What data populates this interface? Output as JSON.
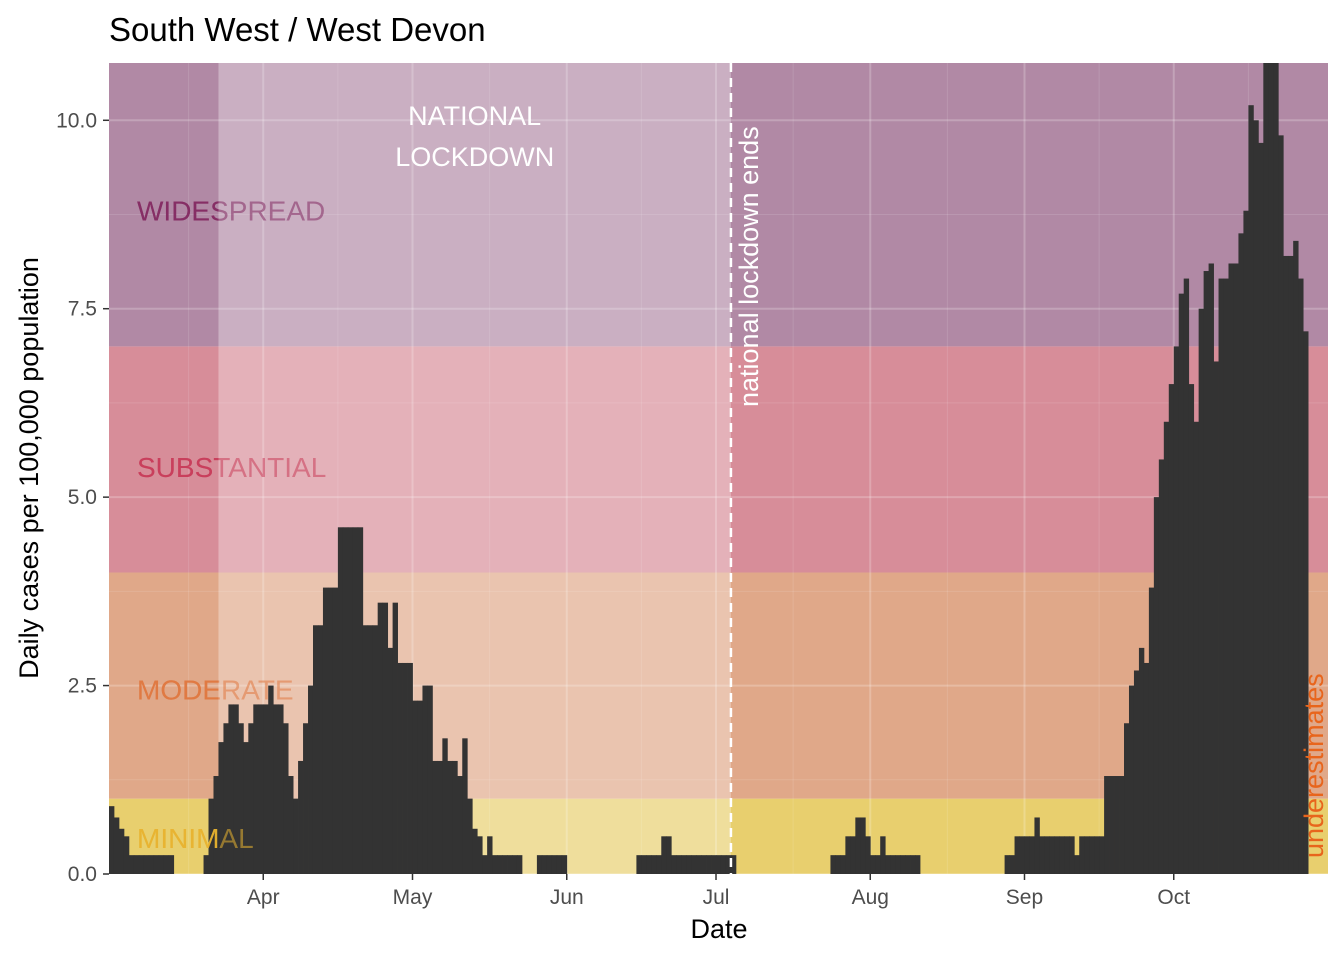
{
  "chart_data": {
    "type": "bar",
    "title": "South West / West Devon",
    "xlabel": "Date",
    "ylabel": "Daily cases per 100,000 population",
    "ylim": [
      0,
      10.76
    ],
    "x_range": [
      "2020-03-01",
      "2020-10-31"
    ],
    "y_ticks": [
      "0.0",
      "2.5",
      "5.0",
      "7.5",
      "10.0"
    ],
    "y_tick_values": [
      0,
      2.5,
      5,
      7.5,
      10
    ],
    "x_ticks": [
      {
        "label": "Apr",
        "date": "2020-04-01"
      },
      {
        "label": "May",
        "date": "2020-05-01"
      },
      {
        "label": "Jun",
        "date": "2020-06-01"
      },
      {
        "label": "Jul",
        "date": "2020-07-01"
      },
      {
        "label": "Aug",
        "date": "2020-08-01"
      },
      {
        "label": "Sep",
        "date": "2020-09-01"
      },
      {
        "label": "Oct",
        "date": "2020-10-01"
      }
    ],
    "grid": true,
    "bands": [
      {
        "label": "MINIMAL",
        "ymin": 0,
        "ymax": 1,
        "color": "#e8cf6e"
      },
      {
        "label": "MODERATE",
        "ymin": 1,
        "ymax": 4,
        "color": "#e0a889"
      },
      {
        "label": "SUBSTANTIAL",
        "ymin": 4,
        "ymax": 7,
        "color": "#d78d99"
      },
      {
        "label": "WIDESPREAD",
        "ymin": 7,
        "ymax": 10.76,
        "color": "#b189a5"
      }
    ],
    "band_label_colors": [
      "#e8b230",
      "#e07840",
      "#c83c5a",
      "#842a62"
    ],
    "lockdown": {
      "start": "2020-03-23",
      "end": "2020-07-04",
      "label_lines": [
        "NATIONAL",
        "LOCKDOWN"
      ]
    },
    "vline": {
      "date": "2020-07-04",
      "label": "national lockdown ends"
    },
    "underestimates_label": "underestimates",
    "underestimates_color": "#e8651c",
    "bar_color": "#333333",
    "dates_start": "2020-03-01",
    "values": [
      0.9,
      0.75,
      0.6,
      0.5,
      0.25,
      0.25,
      0.25,
      0.25,
      0.25,
      0.25,
      0.25,
      0.25,
      0.25,
      0,
      0,
      0,
      0,
      0,
      0,
      0.25,
      1.0,
      1.3,
      1.75,
      2.0,
      2.25,
      2.25,
      2.0,
      1.75,
      2.0,
      2.25,
      2.25,
      2.25,
      2.5,
      2.25,
      2.25,
      2.0,
      1.3,
      1.0,
      1.5,
      2.0,
      2.5,
      3.3,
      3.3,
      3.8,
      3.8,
      3.8,
      4.6,
      4.6,
      4.6,
      4.6,
      4.6,
      3.3,
      3.3,
      3.3,
      3.6,
      3.6,
      3.0,
      3.6,
      2.8,
      2.8,
      2.8,
      2.3,
      2.3,
      2.5,
      2.5,
      1.5,
      1.5,
      1.8,
      1.5,
      1.5,
      1.3,
      1.8,
      1.0,
      0.6,
      0.5,
      0.25,
      0.5,
      0.25,
      0.25,
      0.25,
      0.25,
      0.25,
      0.25,
      0,
      0,
      0,
      0.25,
      0.25,
      0.25,
      0.25,
      0.25,
      0.25,
      0,
      0,
      0,
      0,
      0,
      0,
      0,
      0,
      0,
      0,
      0,
      0,
      0,
      0,
      0.25,
      0.25,
      0.25,
      0.25,
      0.25,
      0.5,
      0.5,
      0.25,
      0.25,
      0.25,
      0.25,
      0.25,
      0.25,
      0.25,
      0.25,
      0.25,
      0.25,
      0.25,
      0.25,
      0.25,
      0,
      0,
      0,
      0,
      0,
      0,
      0,
      0,
      0,
      0,
      0,
      0,
      0,
      0,
      0,
      0,
      0,
      0,
      0,
      0.25,
      0.25,
      0.25,
      0.5,
      0.5,
      0.75,
      0.75,
      0.5,
      0.25,
      0.25,
      0.5,
      0.25,
      0.25,
      0.25,
      0.25,
      0.25,
      0.25,
      0.25,
      0,
      0,
      0,
      0,
      0,
      0,
      0,
      0,
      0,
      0,
      0,
      0,
      0,
      0,
      0,
      0,
      0,
      0.25,
      0.25,
      0.5,
      0.5,
      0.5,
      0.5,
      0.75,
      0.5,
      0.5,
      0.5,
      0.5,
      0.5,
      0.5,
      0.5,
      0.25,
      0.5,
      0.5,
      0.5,
      0.5,
      0.5,
      1.3,
      1.3,
      1.3,
      1.3,
      2.0,
      2.5,
      2.7,
      3.0,
      2.8,
      3.8,
      5.0,
      5.5,
      6.0,
      6.5,
      7.0,
      7.7,
      7.9,
      6.5,
      6.0,
      7.5,
      8.0,
      8.1,
      6.8,
      7.9,
      7.9,
      8.1,
      8.1,
      8.5,
      8.8,
      10.2,
      10.0,
      9.7,
      10.76,
      10.76,
      10.76,
      9.8,
      8.2,
      8.2,
      8.4,
      7.9,
      7.2
    ]
  }
}
